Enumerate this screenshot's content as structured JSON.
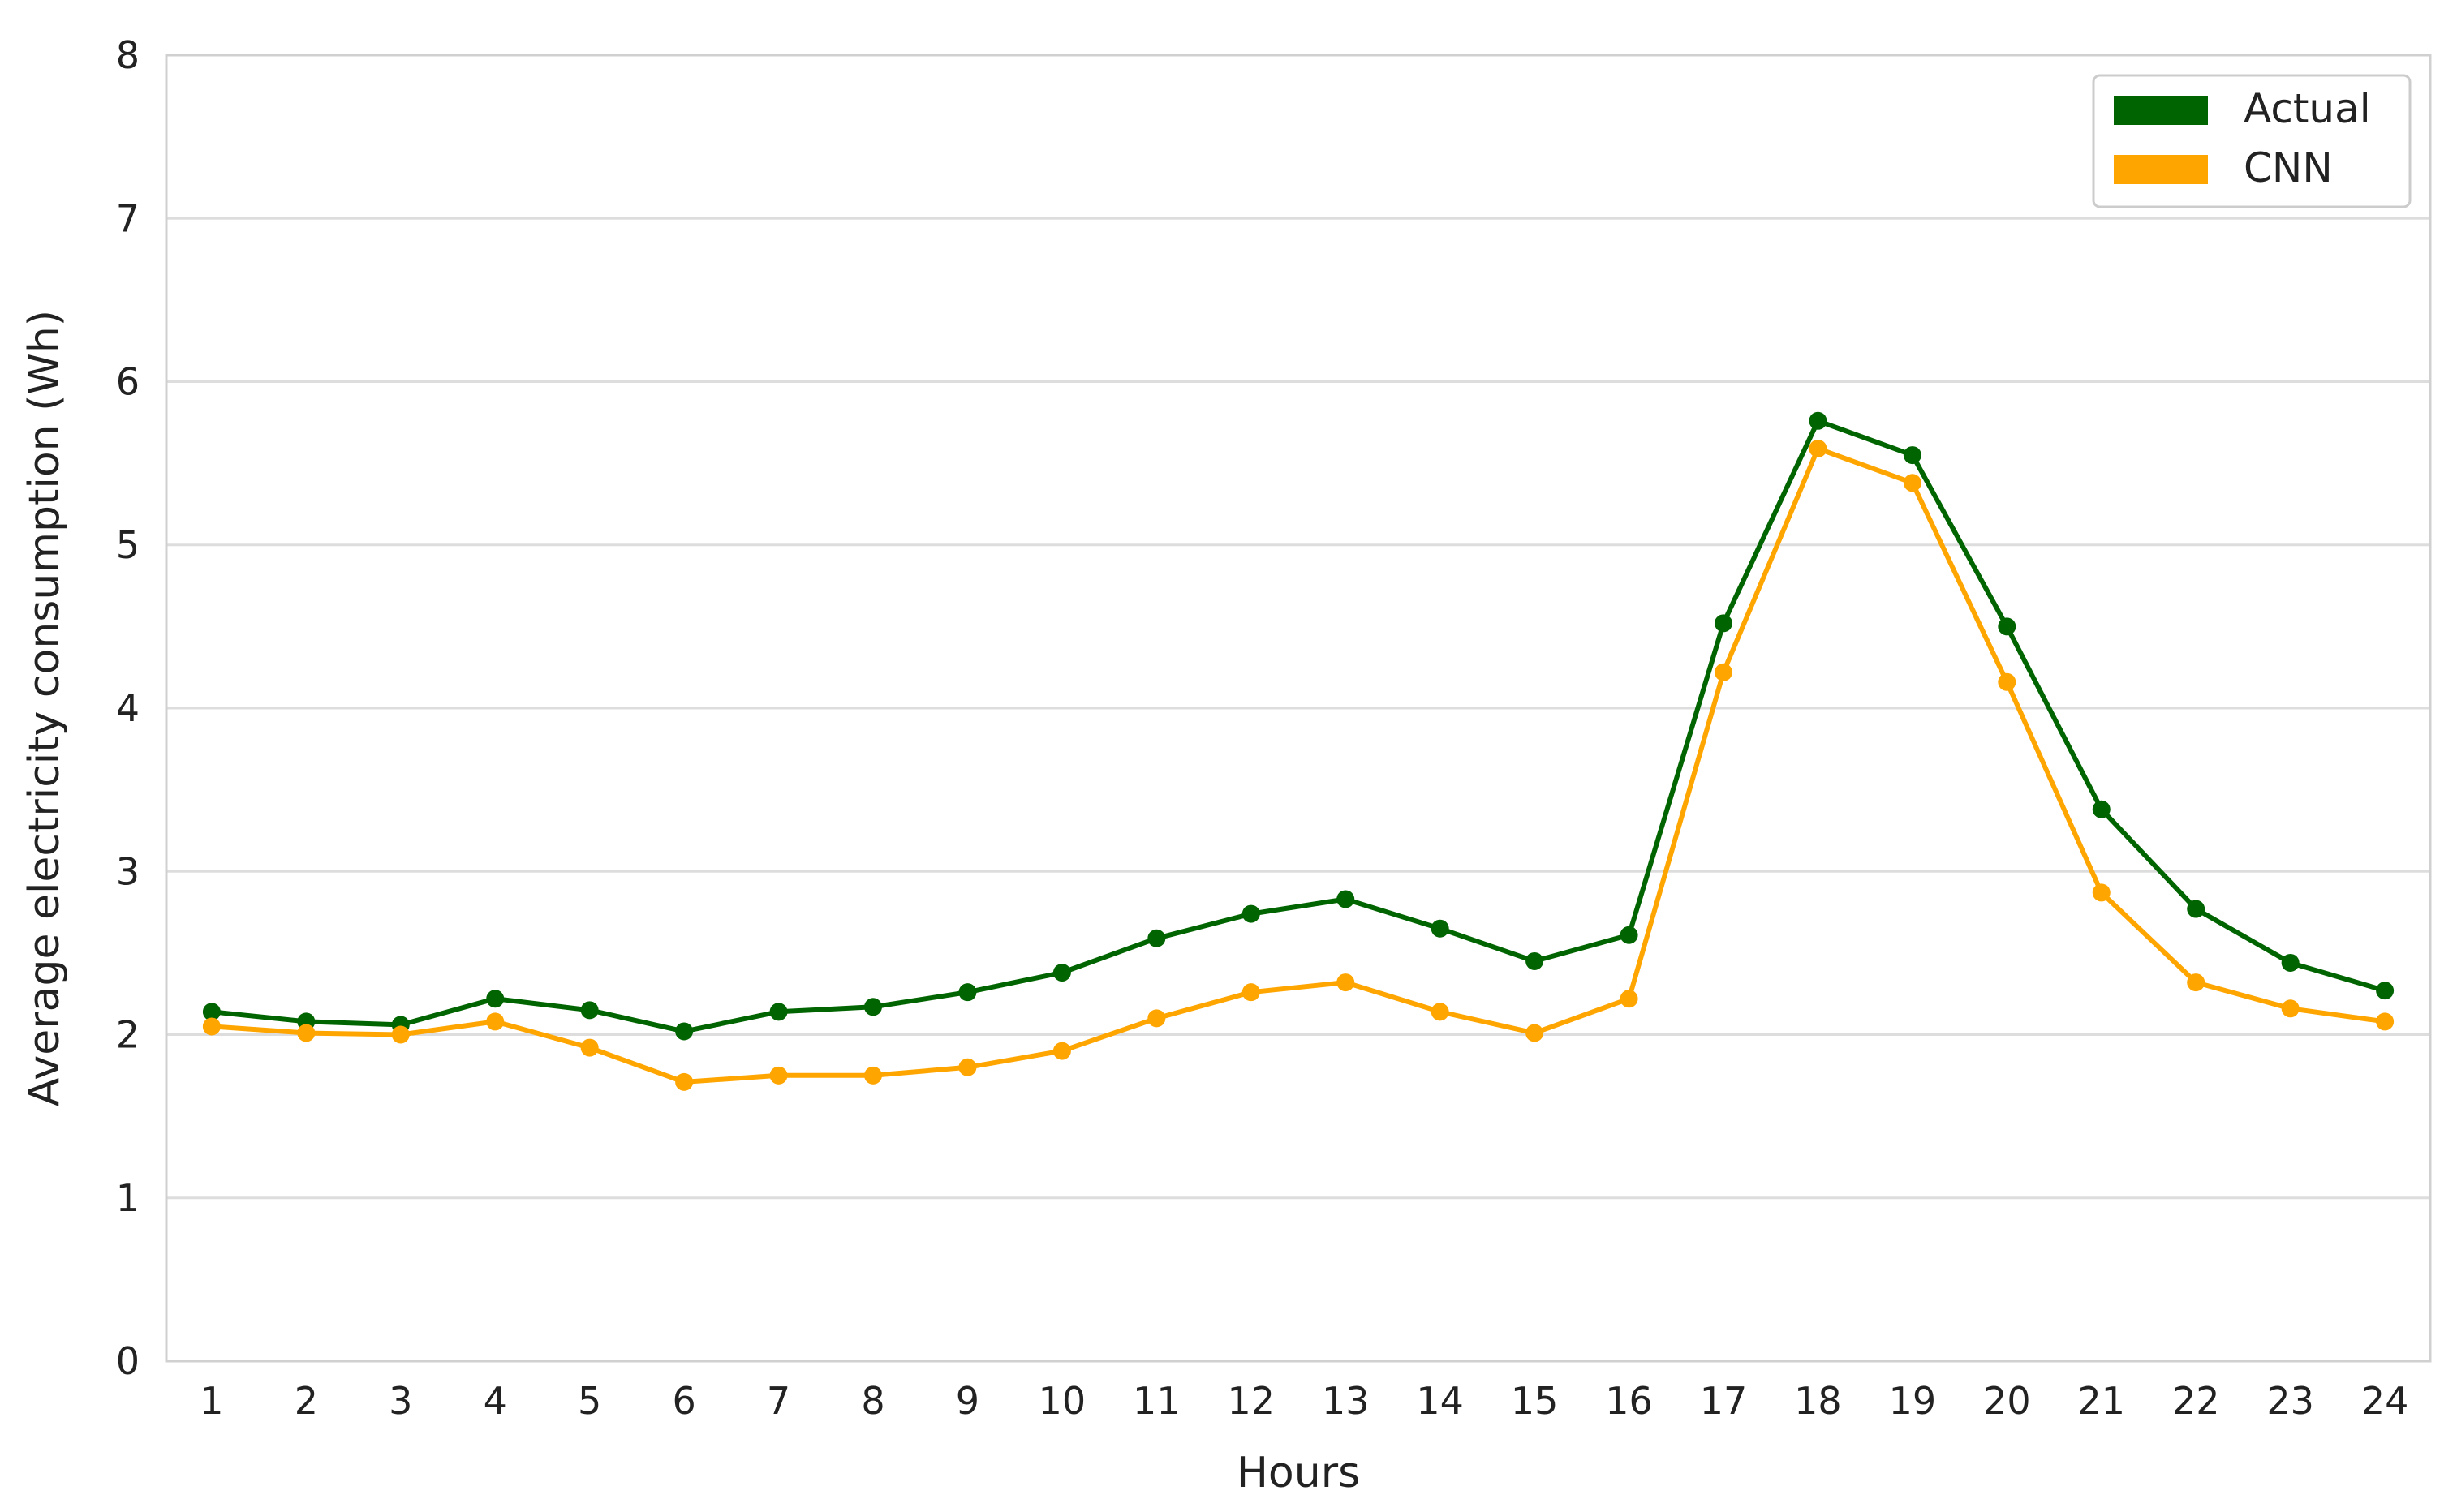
{
  "chart_data": {
    "type": "line",
    "xlabel": "Hours",
    "ylabel": "Average electricity consumption (Wh)",
    "x": [
      1,
      2,
      3,
      4,
      5,
      6,
      7,
      8,
      9,
      10,
      11,
      12,
      13,
      14,
      15,
      16,
      17,
      18,
      19,
      20,
      21,
      22,
      23,
      24
    ],
    "ylim": [
      0,
      8
    ],
    "yticks": [
      0,
      1,
      2,
      3,
      4,
      5,
      6,
      7,
      8
    ],
    "grid": true,
    "legend_position": "top-right",
    "series": [
      {
        "name": "Actual",
        "color": "#006400",
        "values": [
          2.14,
          2.08,
          2.06,
          2.22,
          2.15,
          2.02,
          2.14,
          2.17,
          2.26,
          2.38,
          2.59,
          2.74,
          2.83,
          2.65,
          2.45,
          2.61,
          4.52,
          5.76,
          5.55,
          4.5,
          3.38,
          2.77,
          2.44,
          2.27
        ]
      },
      {
        "name": "CNN",
        "color": "#FFA500",
        "values": [
          2.05,
          2.01,
          2.0,
          2.08,
          1.92,
          1.71,
          1.75,
          1.75,
          1.8,
          1.9,
          2.1,
          2.26,
          2.32,
          2.14,
          2.01,
          2.22,
          4.22,
          5.59,
          5.38,
          4.16,
          2.87,
          2.32,
          2.16,
          2.08
        ]
      }
    ]
  }
}
